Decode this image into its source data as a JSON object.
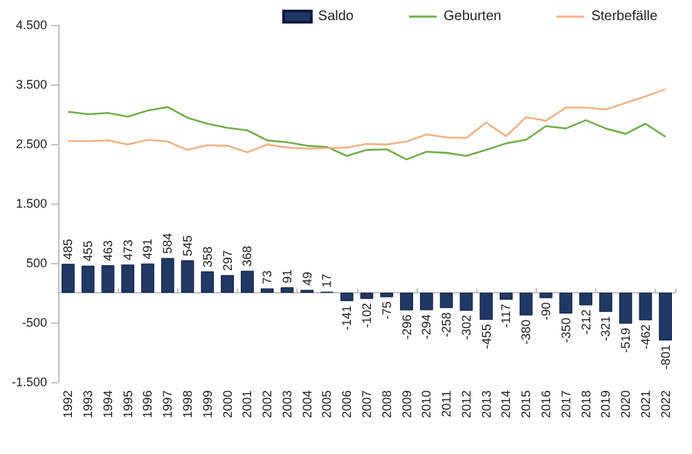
{
  "chart_data": {
    "type": "bar",
    "categories": [
      "1992",
      "1993",
      "1994",
      "1995",
      "1996",
      "1997",
      "1998",
      "1999",
      "2000",
      "2001",
      "2002",
      "2003",
      "2004",
      "2005",
      "2006",
      "2007",
      "2008",
      "2009",
      "2010",
      "2011",
      "2012",
      "2013",
      "2014",
      "2015",
      "2016",
      "2017",
      "2018",
      "2019",
      "2020",
      "2021",
      "2022"
    ],
    "series": [
      {
        "name": "Saldo",
        "color": "#1f3864",
        "values": [
          485,
          455,
          463,
          473,
          491,
          584,
          545,
          358,
          297,
          368,
          73,
          91,
          49,
          17,
          -141,
          -102,
          -75,
          -296,
          -294,
          -258,
          -302,
          -455,
          -117,
          -380,
          -90,
          -350,
          -212,
          -321,
          -519,
          -462,
          -801
        ],
        "value_labels": [
          "485",
          "455",
          "463",
          "473",
          "491",
          "584",
          "545",
          "358",
          "297",
          "368",
          "73",
          "91",
          "49",
          "17",
          "-141",
          "-102",
          "-75",
          "-296",
          "-294",
          "-258",
          "-302",
          "-455",
          "-117",
          "-380",
          "-90",
          "-350",
          "-212",
          "-321",
          "-519",
          "-462",
          "-801"
        ]
      },
      {
        "name": "Geburten",
        "type": "line",
        "color": "#70ad47",
        "values": [
          3040,
          3000,
          3020,
          2960,
          3060,
          3120,
          2940,
          2840,
          2770,
          2730,
          2560,
          2530,
          2470,
          2450,
          2300,
          2400,
          2410,
          2240,
          2370,
          2350,
          2300,
          2400,
          2510,
          2570,
          2800,
          2760,
          2900,
          2760,
          2670,
          2840,
          2620
        ]
      },
      {
        "name": "Sterbefälle",
        "type": "line",
        "color": "#f4b183",
        "values": [
          2550,
          2550,
          2560,
          2490,
          2570,
          2540,
          2400,
          2480,
          2470,
          2360,
          2490,
          2440,
          2420,
          2430,
          2440,
          2500,
          2490,
          2540,
          2660,
          2610,
          2600,
          2860,
          2630,
          2950,
          2890,
          3110,
          3110,
          3080,
          3190,
          3300,
          3420
        ]
      }
    ],
    "ylim": [
      -1500,
      4500
    ],
    "yticks": [
      {
        "value": -1500,
        "label": "-1.500"
      },
      {
        "value": -500,
        "label": "-500"
      },
      {
        "value": 500,
        "label": "500"
      },
      {
        "value": 1500,
        "label": "1.500"
      },
      {
        "value": 2500,
        "label": "2.500"
      },
      {
        "value": 3500,
        "label": "3.500"
      },
      {
        "value": 4500,
        "label": "4.500"
      }
    ],
    "legend": "top right",
    "grid": false,
    "marker": "none",
    "line_style": "solid"
  }
}
